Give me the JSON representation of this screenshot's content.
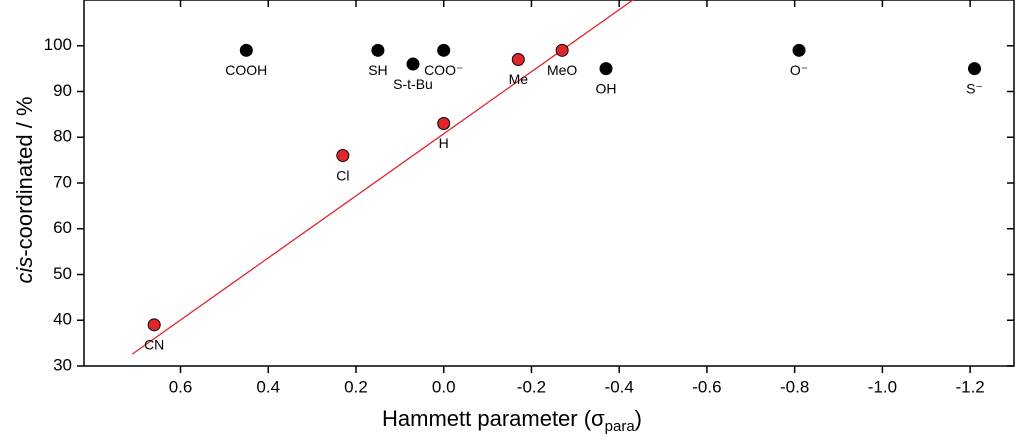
{
  "chart_data": {
    "type": "scatter",
    "xlabel": [
      "Hammett parameter (σ",
      "para",
      ")"
    ],
    "ylabel": [
      "cis",
      "-coordinated / %"
    ],
    "xlim": [
      0.82,
      -1.3
    ],
    "ylim": [
      30,
      110
    ],
    "xticks": [
      0.6,
      0.4,
      0.2,
      {
        "value": 0,
        "label": "0.0"
      },
      -0.2,
      -0.4,
      -0.6,
      -0.8,
      {
        "value": -1,
        "label": "-1.0"
      },
      -1.2
    ],
    "yticks": [
      30,
      40,
      50,
      60,
      70,
      80,
      90,
      100
    ],
    "series": [
      {
        "color": "#000000",
        "x": [
          0.45,
          0.15,
          0.07,
          0,
          -0.37,
          -0.81,
          -1.21
        ],
        "values": [
          99,
          99,
          96,
          99,
          95,
          99,
          95
        ],
        "labels": [
          "COOH",
          "SH",
          "S-t-Bu",
          "COO⁻",
          "OH",
          "O⁻",
          "S⁻"
        ]
      },
      {
        "color": "#e0262b",
        "x": [
          0.66,
          0.23,
          0,
          -0.17,
          -0.27
        ],
        "values": [
          39,
          76,
          83,
          97,
          99
        ],
        "labels": [
          "CN",
          "Cl",
          "H",
          "Me",
          "MeO"
        ]
      }
    ],
    "fit": {
      "type": "line",
      "color": "#e0262b",
      "x": [
        0.71,
        -0.44
      ],
      "values": [
        32.6,
        110.6
      ]
    }
  }
}
